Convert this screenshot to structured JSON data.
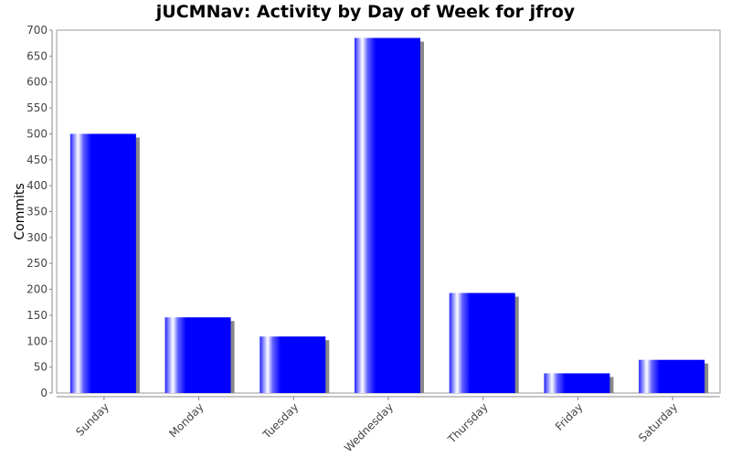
{
  "chart_data": {
    "type": "bar",
    "title": "jUCMNav: Activity by Day of Week for jfroy",
    "xlabel": "",
    "ylabel": "Commits",
    "categories": [
      "Sunday",
      "Monday",
      "Tuesday",
      "Wednesday",
      "Thursday",
      "Friday",
      "Saturday"
    ],
    "values": [
      500,
      146,
      109,
      685,
      193,
      38,
      64
    ],
    "ylim": [
      0,
      700
    ],
    "yticks": [
      0,
      50,
      100,
      150,
      200,
      250,
      300,
      350,
      400,
      450,
      500,
      550,
      600,
      650,
      700
    ],
    "bar_color": "#0000ff",
    "shadow_color": "#888888",
    "grid": false,
    "legend": "none"
  }
}
